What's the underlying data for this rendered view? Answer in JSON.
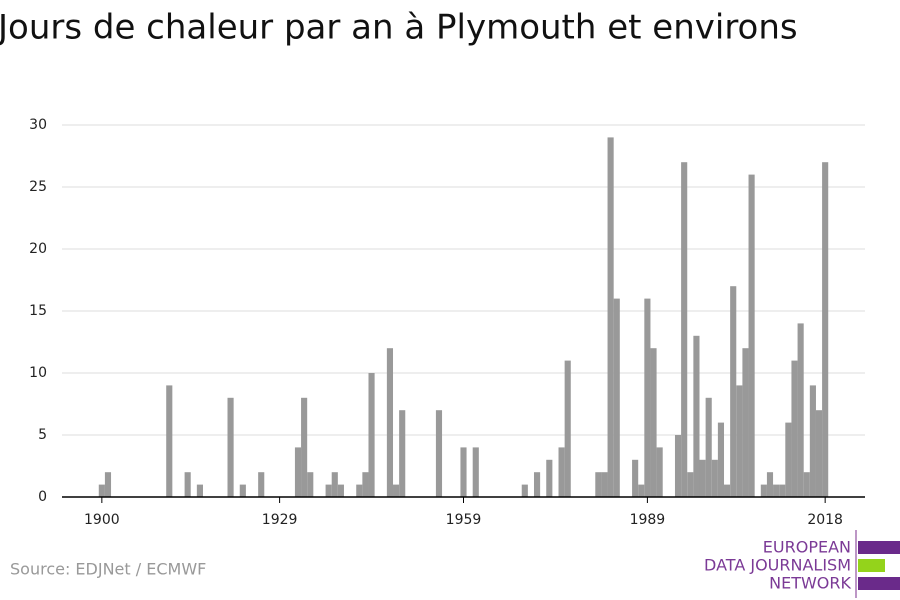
{
  "chart_data": {
    "type": "bar",
    "title": "Jours de chaleur par an à Plymouth et environs",
    "source": "Source: EDJNet / ECMWF",
    "logo": [
      "EUROPEAN",
      "DATA JOURNALISM",
      "NETWORK"
    ],
    "x": [
      1900,
      1901,
      1911,
      1914,
      1916,
      1921,
      1923,
      1926,
      1932,
      1933,
      1934,
      1937,
      1938,
      1939,
      1942,
      1943,
      1944,
      1947,
      1948,
      1949,
      1955,
      1959,
      1961,
      1969,
      1971,
      1973,
      1975,
      1976,
      1981,
      1982,
      1983,
      1984,
      1987,
      1988,
      1989,
      1990,
      1991,
      1994,
      1995,
      1996,
      1997,
      1998,
      1999,
      2000,
      2001,
      2002,
      2003,
      2004,
      2005,
      2006,
      2008,
      2009,
      2010,
      2011,
      2012,
      2013,
      2014,
      2015,
      2016,
      2017,
      2018
    ],
    "values": [
      1,
      2,
      9,
      2,
      1,
      8,
      1,
      2,
      4,
      8,
      2,
      1,
      2,
      1,
      1,
      2,
      10,
      12,
      1,
      7,
      7,
      4,
      4,
      1,
      2,
      3,
      4,
      11,
      2,
      2,
      29,
      16,
      3,
      1,
      16,
      12,
      4,
      5,
      27,
      2,
      13,
      3,
      8,
      3,
      6,
      1,
      17,
      9,
      12,
      26,
      1,
      2,
      1,
      1,
      6,
      11,
      14,
      2,
      9,
      7,
      27
    ],
    "color": "#999999",
    "xlim": [
      1893.5,
      2024.5
    ],
    "xticks": [
      1900,
      1929,
      1959,
      1989,
      2018
    ],
    "ylim": [
      0,
      30
    ],
    "yticks": [
      0,
      5,
      10,
      15,
      20,
      25,
      30
    ],
    "grid": true
  }
}
